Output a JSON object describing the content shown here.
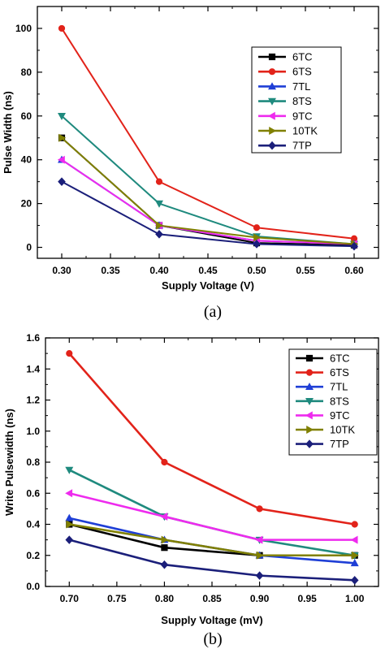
{
  "colors": {
    "6TC": "#000000",
    "6TS": "#e2231a",
    "7TL": "#1f3fd6",
    "8TS": "#1f8a7e",
    "9TC": "#ee2bee",
    "10TK": "#808000",
    "7TP": "#1b1f7a"
  },
  "markers": {
    "6TC": "square",
    "6TS": "circle",
    "7TL": "triangle-up",
    "8TS": "triangle-down",
    "9TC": "triangle-left",
    "10TK": "triangle-right",
    "7TP": "diamond"
  },
  "chart_data": [
    {
      "type": "line",
      "panel_label": "(a)",
      "title": "",
      "xlabel": "Supply Voltage (V)",
      "ylabel": "Pulse Width (ns)",
      "xlim": [
        0.275,
        0.625
      ],
      "ylim": [
        -5,
        110
      ],
      "xticks": [
        0.3,
        0.35,
        0.4,
        0.45,
        0.5,
        0.55,
        0.6
      ],
      "xtick_labels": [
        "0.30",
        "0.35",
        "0.40",
        "0.45",
        "0.50",
        "0.55",
        "0.60"
      ],
      "yticks": [
        0,
        20,
        40,
        60,
        80,
        100
      ],
      "ytick_labels": [
        "0",
        "20",
        "40",
        "60",
        "80",
        "100"
      ],
      "legend_position": "top-right",
      "x": [
        0.3,
        0.4,
        0.5,
        0.6
      ],
      "series": [
        {
          "name": "6TC",
          "values": [
            50,
            10,
            2,
            1
          ]
        },
        {
          "name": "6TS",
          "values": [
            100,
            30,
            9,
            4
          ]
        },
        {
          "name": "7TL",
          "values": [
            40,
            10,
            3,
            1.5
          ]
        },
        {
          "name": "8TS",
          "values": [
            60,
            20,
            5,
            1.5
          ]
        },
        {
          "name": "9TC",
          "values": [
            40,
            10,
            3,
            1.5
          ]
        },
        {
          "name": "10TK",
          "values": [
            50,
            10,
            4.5,
            1.5
          ]
        },
        {
          "name": "7TP",
          "values": [
            30,
            6,
            1.5,
            0.5
          ]
        }
      ]
    },
    {
      "type": "line",
      "panel_label": "(b)",
      "title": "",
      "xlabel": "Supply Voltage (mV)",
      "ylabel": "Write Pulsewidth (ns)",
      "xlim": [
        0.675,
        1.025
      ],
      "ylim": [
        0,
        1.6
      ],
      "xticks": [
        0.7,
        0.75,
        0.8,
        0.85,
        0.9,
        0.95,
        1.0
      ],
      "xtick_labels": [
        "0.70",
        "0.75",
        "0.80",
        "0.85",
        "0.90",
        "0.95",
        "1.00"
      ],
      "yticks": [
        0,
        0.2,
        0.4,
        0.6,
        0.8,
        1.0,
        1.2,
        1.4,
        1.6
      ],
      "ytick_labels": [
        "0.0",
        "0.2",
        "0.4",
        "0.6",
        "0.8",
        "1.0",
        "1.2",
        "1.4",
        "1.6"
      ],
      "legend_position": "top-right",
      "x": [
        0.7,
        0.8,
        0.9,
        1.0
      ],
      "series": [
        {
          "name": "6TC",
          "values": [
            0.4,
            0.25,
            0.2,
            0.2
          ]
        },
        {
          "name": "6TS",
          "values": [
            1.5,
            0.8,
            0.5,
            0.4
          ]
        },
        {
          "name": "7TL",
          "values": [
            0.44,
            0.3,
            0.2,
            0.15
          ]
        },
        {
          "name": "8TS",
          "values": [
            0.75,
            0.45,
            0.3,
            0.2
          ]
        },
        {
          "name": "9TC",
          "values": [
            0.6,
            0.45,
            0.3,
            0.3
          ]
        },
        {
          "name": "10TK",
          "values": [
            0.4,
            0.3,
            0.2,
            0.2
          ]
        },
        {
          "name": "7TP",
          "values": [
            0.3,
            0.14,
            0.07,
            0.04
          ]
        }
      ]
    }
  ]
}
